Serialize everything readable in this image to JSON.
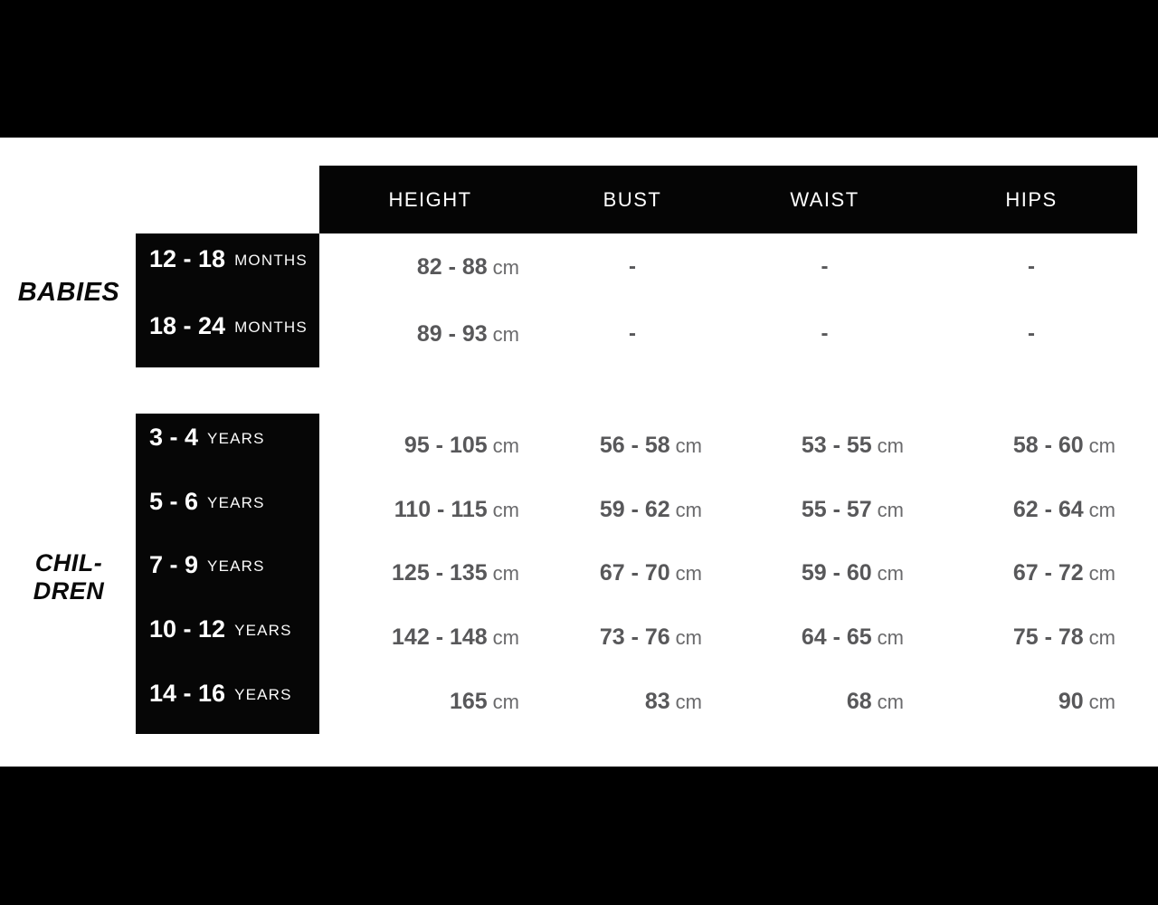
{
  "colors": {
    "background": "#ffffff",
    "band_black": "#000000",
    "box_black": "#060606",
    "header_text": "#ffffff",
    "size_label_text": "#ffffff",
    "value_number": "#58585a",
    "value_unit": "#6a6a6c",
    "group_label_text": "#0a0a0a"
  },
  "chart_data": {
    "type": "table",
    "columns": [
      "HEIGHT",
      "BUST",
      "WAIST",
      "HIPS"
    ],
    "unit_label": "cm",
    "groups": [
      {
        "name": "BABIES",
        "label_lines": [
          "BABIES"
        ],
        "rows": [
          {
            "age": "12 - 18",
            "age_unit": "MONTHS",
            "height": "82 - 88",
            "bust": "-",
            "waist": "-",
            "hips": "-"
          },
          {
            "age": "18 - 24",
            "age_unit": "MONTHS",
            "height": "89 - 93",
            "bust": "-",
            "waist": "-",
            "hips": "-"
          }
        ]
      },
      {
        "name": "CHILDREN",
        "label_lines": [
          "CHIL-",
          "DREN"
        ],
        "rows": [
          {
            "age": "3 - 4",
            "age_unit": "YEARS",
            "height": "95 - 105",
            "bust": "56 - 58",
            "waist": "53 - 55",
            "hips": "58 - 60"
          },
          {
            "age": "5 - 6",
            "age_unit": "YEARS",
            "height": "110 - 115",
            "bust": "59 - 62",
            "waist": "55 - 57",
            "hips": "62 - 64"
          },
          {
            "age": "7 - 9",
            "age_unit": "YEARS",
            "height": "125 - 135",
            "bust": "67 - 70",
            "waist": "59 - 60",
            "hips": "67 - 72"
          },
          {
            "age": "10 - 12",
            "age_unit": "YEARS",
            "height": "142 - 148",
            "bust": "73 - 76",
            "waist": "64 - 65",
            "hips": "75 - 78"
          },
          {
            "age": "14 - 16",
            "age_unit": "YEARS",
            "height": "165",
            "bust": "83",
            "waist": "68",
            "hips": "90"
          }
        ]
      }
    ]
  }
}
